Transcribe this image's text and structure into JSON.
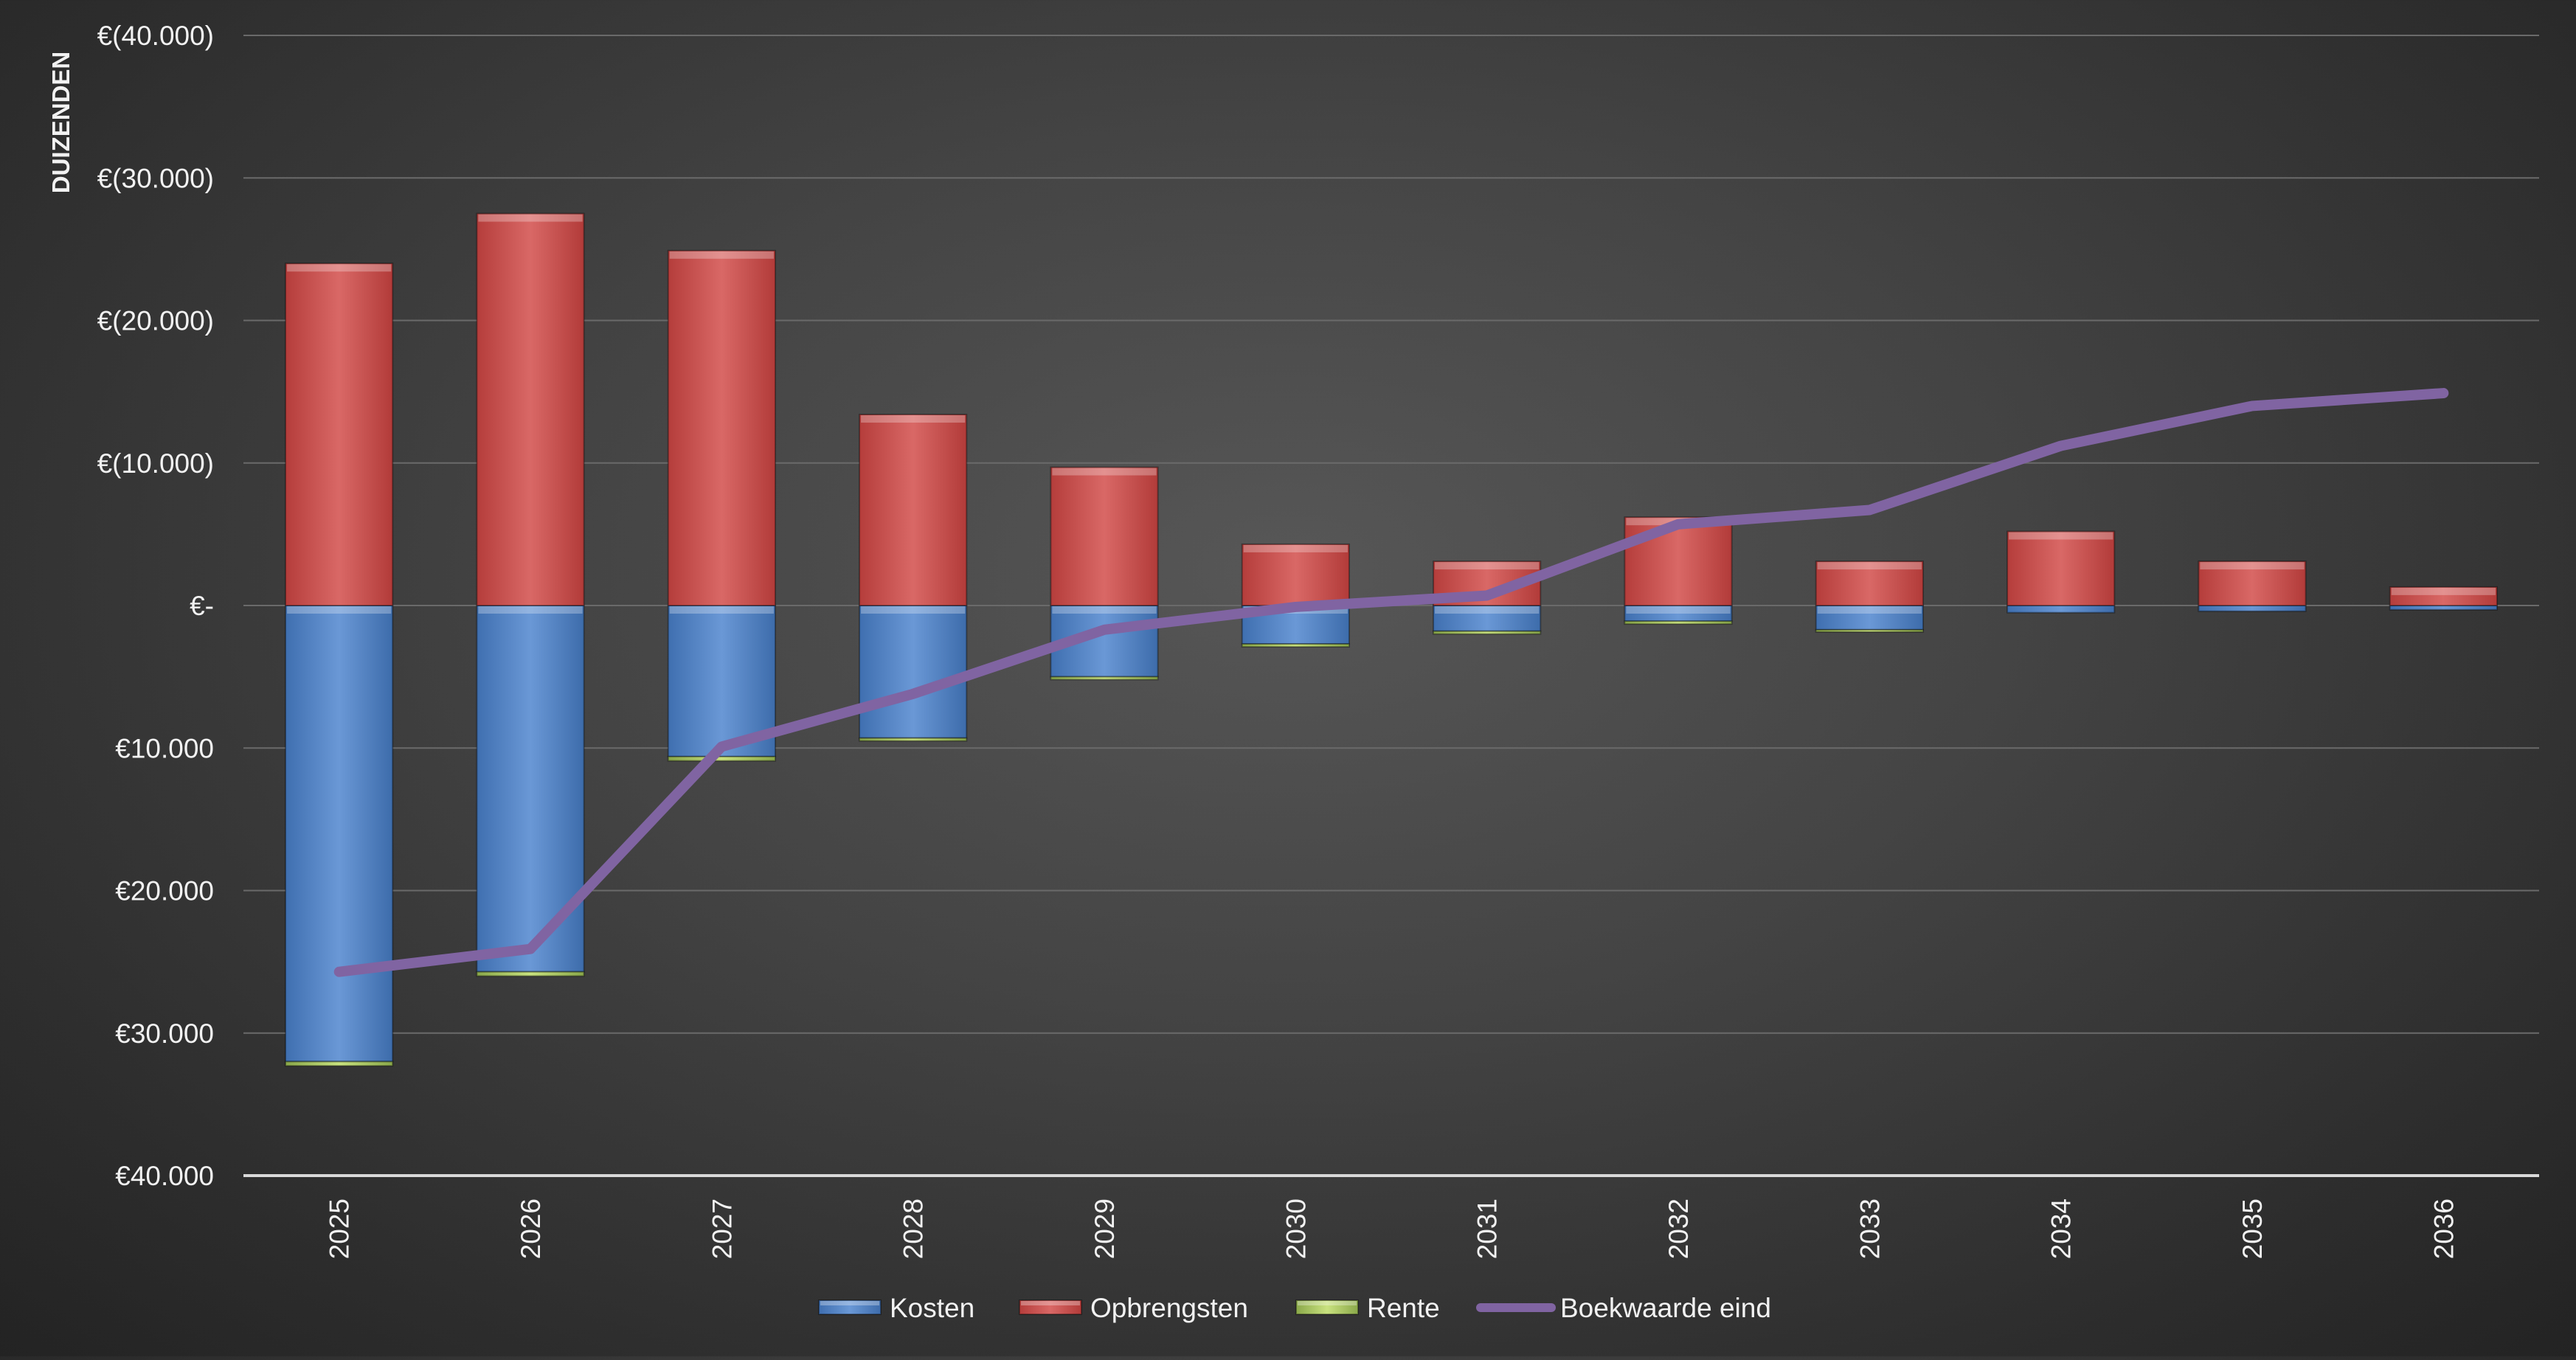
{
  "chart_data": {
    "type": "bar",
    "stacked": true,
    "ylabel": "DUIZENDEN",
    "ylim": [
      -40000,
      40000
    ],
    "y_ticks": [
      40000,
      30000,
      20000,
      10000,
      0,
      -10000,
      -20000,
      -30000,
      -40000
    ],
    "y_tick_labels": [
      "€(40.000)",
      "€(30.000)",
      "€(20.000)",
      "€(10.000)",
      "€-",
      "€10.000",
      "€20.000",
      "€30.000",
      "€40.000"
    ],
    "categories": [
      "2025",
      "2026",
      "2027",
      "2028",
      "2029",
      "2030",
      "2031",
      "2032",
      "2033",
      "2034",
      "2035",
      "2036"
    ],
    "grid": true,
    "legend_position": "bottom",
    "series": [
      {
        "name": "Kosten",
        "kind": "bar",
        "color": "#4f81bd",
        "values": [
          -32000,
          -25700,
          -10600,
          -9300,
          -5000,
          -2700,
          -1800,
          -1100,
          -1700,
          -500,
          -400,
          -300
        ]
      },
      {
        "name": "Opbrengsten",
        "kind": "bar",
        "color": "#c0504d",
        "values": [
          24000,
          27500,
          24900,
          13400,
          9700,
          4300,
          3100,
          6200,
          3100,
          5200,
          3100,
          1300
        ]
      },
      {
        "name": "Rente",
        "kind": "bar",
        "color": "#9bbb59",
        "values": [
          -300,
          -300,
          -300,
          -200,
          -200,
          -200,
          -200,
          -200,
          -100,
          0,
          0,
          0
        ]
      },
      {
        "name": "Boekwaarde eind",
        "kind": "line",
        "color": "#8064a2",
        "values": [
          -25700,
          -24100,
          -9900,
          -6200,
          -1700,
          -100,
          700,
          5700,
          6700,
          11200,
          14000,
          14900
        ]
      }
    ]
  }
}
